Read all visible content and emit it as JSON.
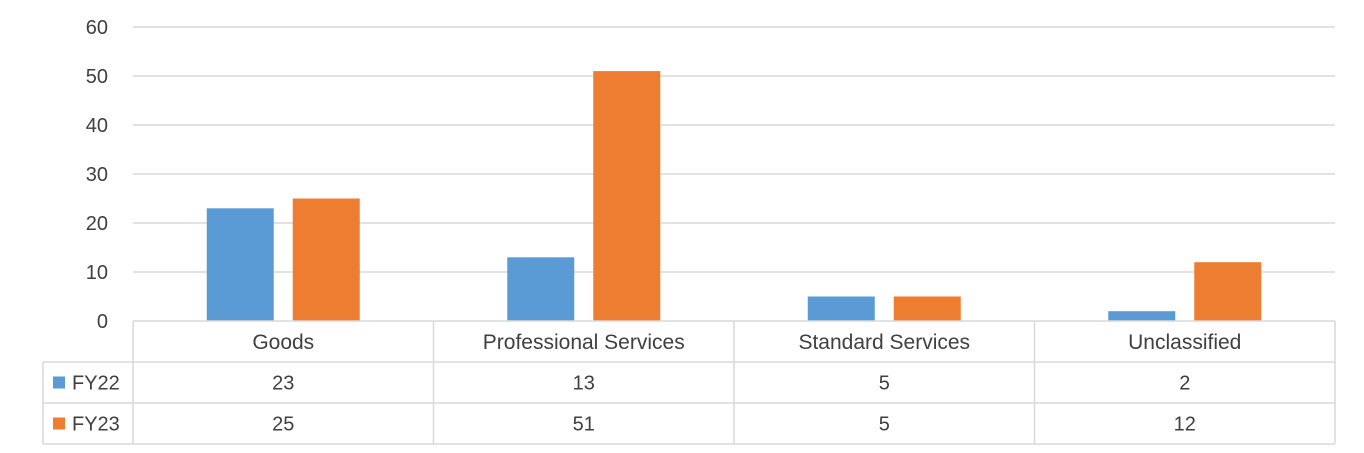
{
  "chart_data": {
    "type": "bar",
    "categories": [
      "Goods",
      "Professional Services",
      "Standard Services",
      "Unclassified"
    ],
    "series": [
      {
        "name": "FY22",
        "values": [
          23,
          13,
          5,
          2
        ],
        "color": "#5B9BD5"
      },
      {
        "name": "FY23",
        "values": [
          25,
          51,
          5,
          12
        ],
        "color": "#ED7D31"
      }
    ],
    "ylim": [
      0,
      60
    ],
    "yticks": [
      0,
      10,
      20,
      30,
      40,
      50,
      60
    ],
    "grid": true,
    "legend": "data-table",
    "title": "",
    "xlabel": "",
    "ylabel": ""
  }
}
